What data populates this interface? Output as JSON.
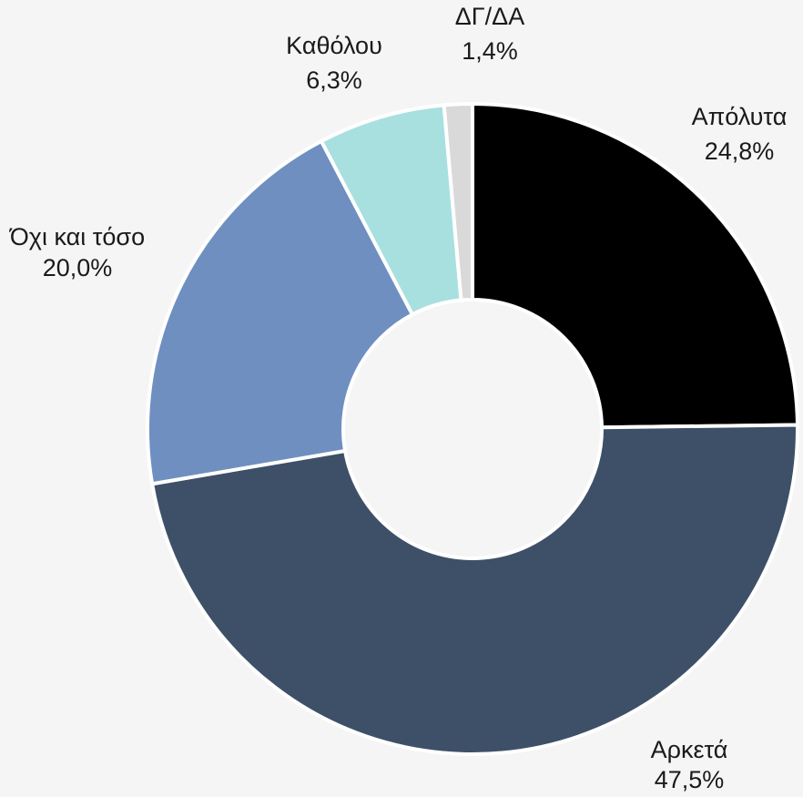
{
  "chart_data": {
    "type": "donut",
    "categories": [
      "Απόλυτα",
      "Αρκετά",
      "Όχι και τόσο",
      "Καθόλου",
      "ΔΓ/ΔΑ"
    ],
    "values": [
      24.8,
      47.5,
      20.0,
      6.3,
      1.4
    ],
    "value_labels": [
      "24,8%",
      "47,5%",
      "20,0%",
      "6,3%",
      "1,4%"
    ],
    "colors": [
      "#000000",
      "#3d5068",
      "#6f8fc0",
      "#a8e0e0",
      "#d9d9d9"
    ]
  }
}
